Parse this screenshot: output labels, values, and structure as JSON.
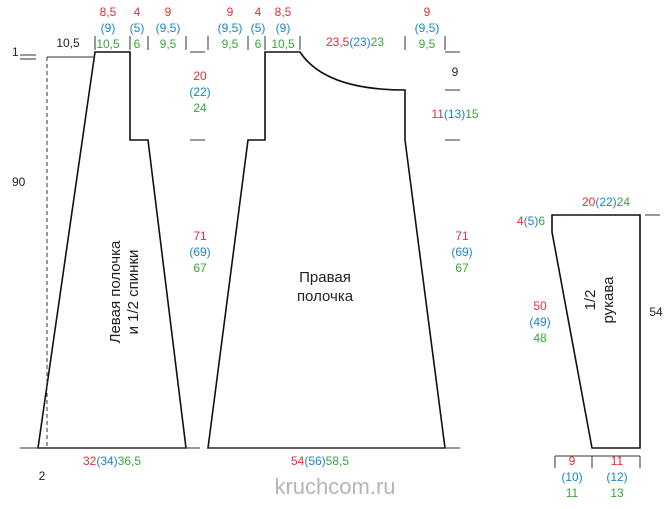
{
  "labels": {
    "one": "1",
    "top_width": "10,5",
    "total_height": "90",
    "two": "2",
    "shoulder_height": "9",
    "sleeve_length": "54"
  },
  "sizes": [
    [
      "8,5",
      "(9)",
      "10,5"
    ],
    [
      "4",
      "(5)",
      "6"
    ],
    [
      "9",
      "(9,5)",
      "9,5"
    ],
    [
      "20",
      "(22)",
      "24"
    ],
    [
      "71",
      "(69)",
      "67"
    ],
    [
      "32",
      "(34)",
      "36,5"
    ],
    [
      "9",
      "(9,5)",
      "9,5"
    ],
    [
      "4",
      "(5)",
      "6"
    ],
    [
      "8,5",
      "(9)",
      "10,5"
    ],
    [
      "23,5",
      "(23)",
      "23"
    ],
    [
      "9",
      "(9,5)",
      "9,5"
    ],
    [
      "11",
      "(13)",
      "15"
    ],
    [
      "71",
      "(69)",
      "67"
    ],
    [
      "54",
      "(56)",
      "58,5"
    ],
    [
      "20",
      "(22)",
      "24"
    ],
    [
      "4",
      "(5)",
      "6"
    ],
    [
      "50",
      "(49)",
      "48"
    ],
    [
      "9",
      "(10)",
      "11"
    ],
    [
      "11",
      "(12)",
      "13"
    ]
  ],
  "pieces": {
    "left_front": [
      "Левая полочка",
      "и 1/2 спинки"
    ],
    "right_front": [
      "Правая",
      "полочка"
    ],
    "sleeve": [
      "1/2",
      "рукава"
    ]
  },
  "watermark": "kruchcom.ru"
}
